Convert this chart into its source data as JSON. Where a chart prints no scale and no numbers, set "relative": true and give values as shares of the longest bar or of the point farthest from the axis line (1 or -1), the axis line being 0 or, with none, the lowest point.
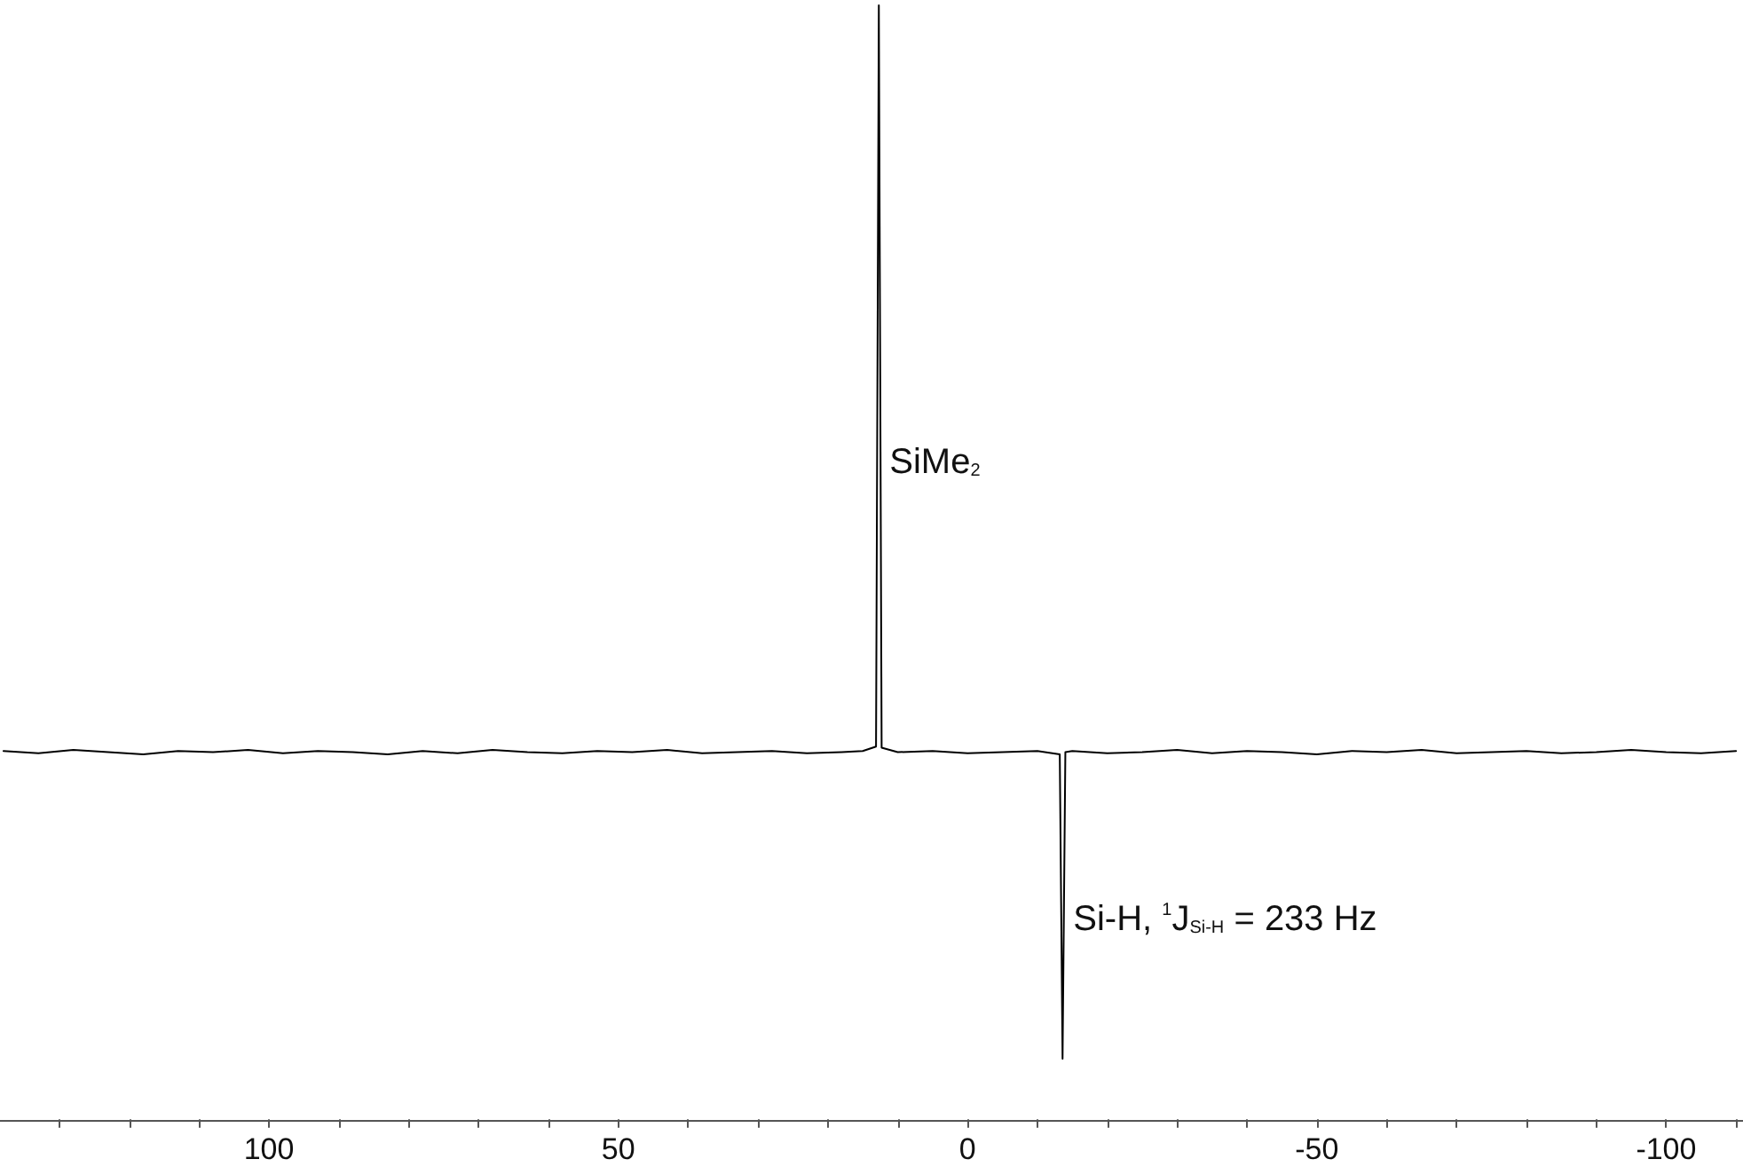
{
  "chart_data": {
    "type": "line",
    "relative": true,
    "color": "#000000",
    "marker": "none",
    "tick_labels": "x",
    "x": [
      138,
      133,
      128,
      123,
      118,
      113,
      108,
      103,
      98,
      93,
      88,
      83,
      78,
      73,
      68,
      63,
      58,
      53,
      48,
      43,
      38,
      33,
      28,
      23,
      18,
      15,
      13.1,
      12.7,
      12.3,
      10,
      5,
      0,
      -5,
      -10,
      -13.2,
      -13.6,
      -14,
      -15,
      -20,
      -25,
      -30,
      -35,
      -40,
      -45,
      -50,
      -55,
      -60,
      -65,
      -70,
      -75,
      -80,
      -85,
      -90,
      -95,
      -100,
      -105,
      -110
    ],
    "values": [
      0.331,
      0.329,
      0.332,
      0.33,
      0.328,
      0.331,
      0.33,
      0.332,
      0.329,
      0.331,
      0.33,
      0.328,
      0.331,
      0.329,
      0.332,
      0.33,
      0.329,
      0.331,
      0.33,
      0.332,
      0.329,
      0.33,
      0.331,
      0.329,
      0.33,
      0.331,
      0.335,
      1.0,
      0.334,
      0.33,
      0.331,
      0.329,
      0.33,
      0.331,
      0.328,
      0.055,
      0.33,
      0.331,
      0.329,
      0.33,
      0.332,
      0.329,
      0.331,
      0.33,
      0.328,
      0.331,
      0.33,
      0.332,
      0.329,
      0.33,
      0.331,
      0.329,
      0.33,
      0.332,
      0.33,
      0.329,
      0.331
    ],
    "xlim": [
      138.5,
      -111
    ],
    "xticks": [
      {
        "value": 130,
        "label": null
      },
      {
        "value": 120,
        "label": null
      },
      {
        "value": 110,
        "label": null
      },
      100,
      {
        "value": 90,
        "label": null
      },
      {
        "value": 80,
        "label": null
      },
      {
        "value": 70,
        "label": null
      },
      {
        "value": 60,
        "label": null
      },
      50,
      {
        "value": 40,
        "label": null
      },
      {
        "value": 30,
        "label": null
      },
      {
        "value": 20,
        "label": null
      },
      {
        "value": 10,
        "label": null
      },
      0,
      {
        "value": -10,
        "label": null
      },
      {
        "value": -20,
        "label": null
      },
      {
        "value": -30,
        "label": null
      },
      {
        "value": -40,
        "label": null
      },
      -50,
      {
        "value": -60,
        "label": null
      },
      {
        "value": -70,
        "label": null
      },
      {
        "value": -80,
        "label": null
      },
      {
        "value": -90,
        "label": null
      },
      -100,
      {
        "value": -110,
        "label": null
      }
    ],
    "annotations": [
      {
        "text": "SiMe$_{2}$",
        "x": 12.7,
        "y": 0.59
      },
      {
        "text": "Si-H, $^{1}$J$_{Si-H}$ = 233 Hz",
        "x": -13.6,
        "y": 0.18
      }
    ]
  }
}
